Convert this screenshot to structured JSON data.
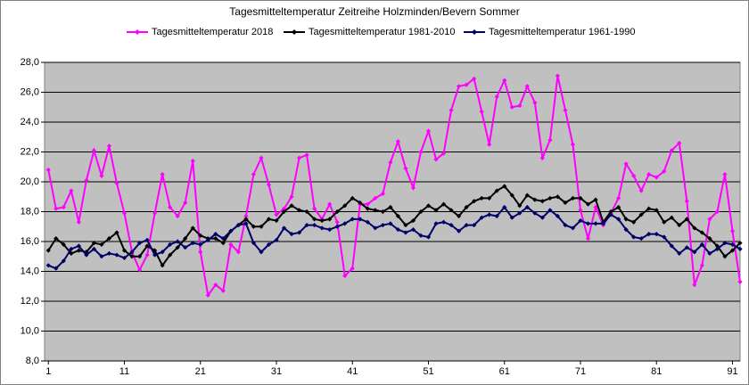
{
  "chart_data": {
    "type": "line",
    "title": "Tagesmitteltemperatur Zeitreihe Holzminden/Bevern  Sommer",
    "x": [
      1,
      2,
      3,
      4,
      5,
      6,
      7,
      8,
      9,
      10,
      11,
      12,
      13,
      14,
      15,
      16,
      17,
      18,
      19,
      20,
      21,
      22,
      23,
      24,
      25,
      26,
      27,
      28,
      29,
      30,
      31,
      32,
      33,
      34,
      35,
      36,
      37,
      38,
      39,
      40,
      41,
      42,
      43,
      44,
      45,
      46,
      47,
      48,
      49,
      50,
      51,
      52,
      53,
      54,
      55,
      56,
      57,
      58,
      59,
      60,
      61,
      62,
      63,
      64,
      65,
      66,
      67,
      68,
      69,
      70,
      71,
      72,
      73,
      74,
      75,
      76,
      77,
      78,
      79,
      80,
      81,
      82,
      83,
      84,
      85,
      86,
      87,
      88,
      89,
      90,
      91,
      92
    ],
    "series": [
      {
        "name": "Tagesmitteltemperatur 2018",
        "color": "#ff00ff",
        "values": [
          20.8,
          18.2,
          18.3,
          19.4,
          17.3,
          20.1,
          22.1,
          20.4,
          22.4,
          19.9,
          17.9,
          15.3,
          14.1,
          15.1,
          17.9,
          20.5,
          18.3,
          17.7,
          18.6,
          21.4,
          15.3,
          12.4,
          13.1,
          12.7,
          15.8,
          15.3,
          17.7,
          20.5,
          21.6,
          19.8,
          17.8,
          18.2,
          19.0,
          21.6,
          21.8,
          18.2,
          17.5,
          18.5,
          17.3,
          13.7,
          14.2,
          18.5,
          18.5,
          18.9,
          19.2,
          21.3,
          22.7,
          20.9,
          19.6,
          22.0,
          23.4,
          21.5,
          21.9,
          24.8,
          26.4,
          26.5,
          26.9,
          24.7,
          22.5,
          25.7,
          26.8,
          25.0,
          25.1,
          26.4,
          25.3,
          21.6,
          22.8,
          27.1,
          24.8,
          22.5,
          18.1,
          16.2,
          18.3,
          17.1,
          17.9,
          18.9,
          21.2,
          20.4,
          19.4,
          20.5,
          20.3,
          20.7,
          22.1,
          22.6,
          18.7,
          13.1,
          14.4,
          17.5,
          18.0,
          20.5,
          16.7,
          13.3
        ]
      },
      {
        "name": "Tagesmitteltemperatur 1981-2010",
        "color": "#000000",
        "values": [
          15.4,
          16.2,
          15.8,
          15.2,
          15.4,
          15.3,
          15.9,
          15.8,
          16.2,
          16.6,
          15.4,
          15.0,
          15.0,
          15.7,
          15.4,
          14.4,
          15.1,
          15.6,
          16.2,
          16.9,
          16.4,
          16.2,
          16.2,
          15.9,
          16.7,
          17.1,
          17.5,
          17.0,
          17.0,
          17.5,
          17.4,
          18.0,
          18.4,
          18.1,
          18.0,
          17.5,
          17.4,
          17.5,
          18.0,
          18.4,
          18.9,
          18.6,
          18.2,
          18.1,
          18.0,
          18.3,
          17.7,
          17.1,
          17.4,
          18.0,
          18.4,
          18.1,
          18.5,
          18.1,
          17.7,
          18.3,
          18.7,
          18.9,
          18.9,
          19.4,
          19.7,
          19.1,
          18.4,
          19.1,
          18.8,
          18.7,
          18.9,
          19.0,
          18.6,
          18.9,
          18.9,
          18.5,
          18.8,
          17.3,
          18.0,
          18.3,
          17.5,
          17.3,
          17.8,
          18.2,
          18.1,
          17.3,
          17.6,
          17.1,
          17.5,
          16.9,
          16.6,
          16.2,
          15.7,
          15.0,
          15.4,
          15.9
        ]
      },
      {
        "name": "Tagesmitteltemperatur 1961-1990",
        "color": "#000066",
        "values": [
          14.4,
          14.2,
          14.7,
          15.5,
          15.7,
          15.1,
          15.5,
          15.0,
          15.2,
          15.1,
          14.9,
          15.3,
          15.9,
          16.1,
          15.1,
          15.3,
          15.8,
          16.0,
          15.6,
          15.9,
          15.8,
          16.1,
          16.5,
          16.2,
          16.7,
          17.1,
          17.2,
          15.9,
          15.3,
          15.8,
          16.1,
          16.9,
          16.5,
          16.6,
          17.1,
          17.1,
          16.9,
          16.8,
          17.0,
          17.2,
          17.5,
          17.5,
          17.3,
          16.9,
          17.1,
          17.2,
          16.8,
          16.6,
          16.8,
          16.4,
          16.3,
          17.2,
          17.3,
          17.1,
          16.7,
          17.1,
          17.1,
          17.6,
          17.8,
          17.7,
          18.3,
          17.6,
          17.9,
          18.3,
          17.9,
          17.6,
          18.1,
          17.7,
          17.1,
          16.9,
          17.4,
          17.2,
          17.2,
          17.2,
          17.8,
          17.5,
          16.8,
          16.3,
          16.2,
          16.5,
          16.5,
          16.3,
          15.7,
          15.2,
          15.6,
          15.3,
          15.8,
          15.2,
          15.5,
          15.9,
          15.8,
          15.5
        ]
      }
    ],
    "xlim": [
      0.5,
      92
    ],
    "xticks": [
      1,
      11,
      21,
      31,
      41,
      51,
      61,
      71,
      81,
      91
    ],
    "ylim": [
      8,
      28
    ],
    "yticks": [
      {
        "value": 8,
        "label": "8,0"
      },
      {
        "value": 10,
        "label": "10,0"
      },
      {
        "value": 12,
        "label": "12,0"
      },
      {
        "value": 14,
        "label": "14,0"
      },
      {
        "value": 16,
        "label": "16,0"
      },
      {
        "value": 18,
        "label": "18,0"
      },
      {
        "value": 20,
        "label": "20,0"
      },
      {
        "value": 22,
        "label": "22,0"
      },
      {
        "value": 24,
        "label": "24,0"
      },
      {
        "value": 26,
        "label": "26,0"
      },
      {
        "value": 28,
        "label": "28,0"
      }
    ],
    "grid": true,
    "legend": "top"
  }
}
